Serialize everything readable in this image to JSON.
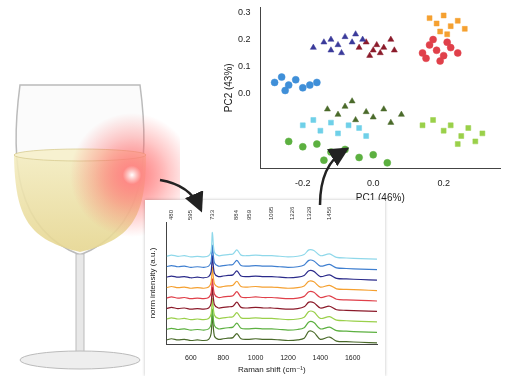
{
  "chart_data": [
    {
      "type": "line",
      "x_label": "Raman shift (cm⁻¹)",
      "y_label": "norm intensity (a.u.)",
      "x": [
        450,
        480,
        520,
        560,
        600,
        640,
        680,
        710,
        725,
        733,
        745,
        770,
        800,
        830,
        860,
        884,
        910,
        950,
        1000,
        1050,
        1100,
        1150,
        1200,
        1260,
        1300,
        1329,
        1360,
        1400,
        1456,
        1500,
        1560,
        1650,
        1750
      ],
      "series": [
        {
          "color": "#8fd8ea",
          "values": [
            7.55,
            7.65,
            7.55,
            7.6,
            7.5,
            7.55,
            7.5,
            7.6,
            8.0,
            9.6,
            7.9,
            7.6,
            7.65,
            7.7,
            7.75,
            8.1,
            7.65,
            7.6,
            7.65,
            7.6,
            7.6,
            7.55,
            7.5,
            7.55,
            7.7,
            8.1,
            8.05,
            7.6,
            7.75,
            7.45,
            7.4,
            7.35,
            7.3
          ]
        },
        {
          "color": "#3f7fd0",
          "values": [
            6.65,
            6.75,
            6.65,
            6.7,
            6.6,
            6.65,
            6.6,
            6.7,
            7.1,
            8.5,
            7.0,
            6.7,
            6.75,
            6.8,
            6.85,
            7.2,
            6.75,
            6.7,
            6.75,
            6.7,
            6.7,
            6.65,
            6.6,
            6.65,
            6.8,
            7.2,
            7.15,
            6.7,
            6.85,
            6.55,
            6.5,
            6.45,
            6.4
          ]
        },
        {
          "color": "#2a2a8a",
          "values": [
            5.75,
            5.85,
            5.75,
            5.8,
            5.7,
            5.75,
            5.7,
            5.8,
            6.2,
            7.6,
            6.1,
            5.8,
            5.85,
            5.9,
            5.95,
            6.3,
            5.85,
            5.8,
            5.85,
            5.8,
            5.8,
            5.75,
            5.7,
            5.75,
            5.9,
            6.3,
            6.25,
            5.8,
            5.95,
            5.65,
            5.6,
            5.55,
            5.5
          ]
        },
        {
          "color": "#f5a030",
          "values": [
            4.85,
            4.95,
            4.85,
            4.9,
            4.8,
            4.85,
            4.8,
            4.9,
            5.3,
            6.6,
            5.2,
            4.9,
            4.95,
            5.0,
            5.05,
            5.4,
            4.95,
            4.9,
            4.95,
            4.9,
            4.9,
            4.85,
            4.8,
            4.85,
            5.0,
            5.4,
            5.35,
            4.9,
            5.05,
            4.75,
            4.7,
            4.65,
            4.6
          ]
        },
        {
          "color": "#e0404a",
          "values": [
            3.95,
            4.05,
            3.95,
            4.0,
            3.9,
            3.95,
            3.9,
            4.0,
            4.4,
            5.6,
            4.3,
            4.0,
            4.05,
            4.1,
            4.15,
            4.5,
            4.05,
            4.0,
            4.05,
            4.0,
            4.0,
            3.95,
            3.9,
            3.95,
            4.1,
            4.5,
            4.45,
            4.0,
            4.15,
            3.85,
            3.8,
            3.75,
            3.7
          ]
        },
        {
          "color": "#8b1a2a",
          "values": [
            3.05,
            3.15,
            3.05,
            3.1,
            3.0,
            3.05,
            3.0,
            3.1,
            3.5,
            4.9,
            3.4,
            3.1,
            3.15,
            3.2,
            3.25,
            3.6,
            3.15,
            3.1,
            3.15,
            3.1,
            3.1,
            3.05,
            3.0,
            3.05,
            3.2,
            3.6,
            3.55,
            3.1,
            3.25,
            2.95,
            2.9,
            2.85,
            2.8
          ]
        },
        {
          "color": "#9ad04a",
          "values": [
            2.15,
            2.25,
            2.15,
            2.2,
            2.1,
            2.15,
            2.1,
            2.2,
            2.6,
            3.9,
            2.5,
            2.2,
            2.25,
            2.3,
            2.35,
            2.7,
            2.25,
            2.2,
            2.25,
            2.2,
            2.2,
            2.15,
            2.1,
            2.15,
            2.3,
            2.8,
            2.75,
            2.2,
            2.35,
            2.05,
            2.0,
            1.95,
            1.9
          ]
        },
        {
          "color": "#5cb040",
          "values": [
            1.25,
            1.35,
            1.25,
            1.3,
            1.2,
            1.25,
            1.2,
            1.3,
            1.7,
            3.0,
            1.6,
            1.3,
            1.35,
            1.4,
            1.45,
            1.8,
            1.35,
            1.3,
            1.35,
            1.3,
            1.3,
            1.25,
            1.2,
            1.25,
            1.4,
            1.9,
            1.85,
            1.3,
            1.45,
            1.15,
            1.1,
            1.05,
            1.0
          ]
        },
        {
          "color": "#4a6a2a",
          "values": [
            0.35,
            0.45,
            0.35,
            0.4,
            0.3,
            0.35,
            0.3,
            0.4,
            0.9,
            2.6,
            0.7,
            0.4,
            0.45,
            0.5,
            0.55,
            0.9,
            0.45,
            0.4,
            0.45,
            0.4,
            0.4,
            0.35,
            0.3,
            0.35,
            0.5,
            1.1,
            1.0,
            0.4,
            0.6,
            0.25,
            0.2,
            0.15,
            0.1
          ]
        }
      ],
      "xlim": [
        450,
        1750
      ],
      "xticks": [
        600,
        800,
        1000,
        1200,
        1400,
        1600
      ],
      "ylim": [
        0,
        10.5
      ],
      "tick_labels": "x",
      "grid": false,
      "annotations": [
        {
          "x": 480,
          "text": "480"
        },
        {
          "x": 595,
          "text": "595"
        },
        {
          "x": 733,
          "text": "733"
        },
        {
          "x": 884,
          "text": "884"
        },
        {
          "x": 959,
          "text": "959"
        },
        {
          "x": 1095,
          "text": "1095"
        },
        {
          "x": 1226,
          "text": "1226"
        },
        {
          "x": 1329,
          "text": "1329"
        },
        {
          "x": 1456,
          "text": "1456"
        }
      ]
    },
    {
      "type": "scatter",
      "x_label": "PC1 (46%)",
      "y_label": "PC2 (43%)",
      "series": [
        {
          "color": "#3a3a9a",
          "marker": "triangle",
          "values": [
            [
              -0.17,
              0.17
            ],
            [
              -0.14,
              0.19
            ],
            [
              -0.12,
              0.2
            ],
            [
              -0.1,
              0.18
            ],
            [
              -0.08,
              0.21
            ],
            [
              -0.06,
              0.19
            ],
            [
              -0.05,
              0.22
            ],
            [
              -0.03,
              0.2
            ],
            [
              -0.12,
              0.16
            ],
            [
              -0.09,
              0.15
            ]
          ]
        },
        {
          "color": "#8b1a2a",
          "marker": "triangle",
          "values": [
            [
              -0.04,
              0.17
            ],
            [
              -0.02,
              0.19
            ],
            [
              0.0,
              0.16
            ],
            [
              0.01,
              0.18
            ],
            [
              0.03,
              0.17
            ],
            [
              0.05,
              0.2
            ],
            [
              0.02,
              0.15
            ],
            [
              -0.01,
              0.14
            ],
            [
              0.06,
              0.16
            ]
          ]
        },
        {
          "color": "#e0404a",
          "marker": "circle",
          "values": [
            [
              0.14,
              0.15
            ],
            [
              0.16,
              0.18
            ],
            [
              0.18,
              0.16
            ],
            [
              0.2,
              0.14
            ],
            [
              0.22,
              0.17
            ],
            [
              0.19,
              0.12
            ],
            [
              0.24,
              0.15
            ],
            [
              0.17,
              0.2
            ],
            [
              0.21,
              0.19
            ],
            [
              0.15,
              0.13
            ]
          ]
        },
        {
          "color": "#f5a030",
          "marker": "square",
          "values": [
            [
              0.16,
              0.28
            ],
            [
              0.18,
              0.26
            ],
            [
              0.2,
              0.29
            ],
            [
              0.22,
              0.25
            ],
            [
              0.24,
              0.27
            ],
            [
              0.19,
              0.23
            ],
            [
              0.26,
              0.24
            ],
            [
              0.21,
              0.22
            ]
          ]
        },
        {
          "color": "#3f8fd8",
          "marker": "circle",
          "values": [
            [
              -0.28,
              0.04
            ],
            [
              -0.26,
              0.06
            ],
            [
              -0.24,
              0.03
            ],
            [
              -0.22,
              0.05
            ],
            [
              -0.2,
              0.02
            ],
            [
              -0.25,
              0.01
            ],
            [
              -0.18,
              0.03
            ],
            [
              -0.16,
              0.04
            ]
          ]
        },
        {
          "color": "#4a6a2a",
          "marker": "triangle",
          "values": [
            [
              -0.13,
              -0.06
            ],
            [
              -0.1,
              -0.08
            ],
            [
              -0.08,
              -0.05
            ],
            [
              -0.05,
              -0.1
            ],
            [
              -0.02,
              -0.07
            ],
            [
              0.0,
              -0.09
            ],
            [
              0.03,
              -0.06
            ],
            [
              0.05,
              -0.11
            ],
            [
              0.08,
              -0.08
            ],
            [
              -0.06,
              -0.03
            ]
          ]
        },
        {
          "color": "#6fd0e8",
          "marker": "square",
          "values": [
            [
              -0.2,
              -0.12
            ],
            [
              -0.17,
              -0.1
            ],
            [
              -0.15,
              -0.14
            ],
            [
              -0.12,
              -0.11
            ],
            [
              -0.1,
              -0.15
            ],
            [
              -0.07,
              -0.12
            ],
            [
              -0.04,
              -0.13
            ],
            [
              -0.02,
              -0.16
            ]
          ]
        },
        {
          "color": "#9ad04a",
          "marker": "square",
          "values": [
            [
              0.14,
              -0.12
            ],
            [
              0.17,
              -0.1
            ],
            [
              0.2,
              -0.14
            ],
            [
              0.22,
              -0.12
            ],
            [
              0.25,
              -0.16
            ],
            [
              0.27,
              -0.13
            ],
            [
              0.29,
              -0.18
            ],
            [
              0.31,
              -0.15
            ],
            [
              0.24,
              -0.19
            ]
          ]
        },
        {
          "color": "#5cb040",
          "marker": "circle",
          "values": [
            [
              -0.24,
              -0.18
            ],
            [
              -0.2,
              -0.2
            ],
            [
              -0.16,
              -0.19
            ],
            [
              -0.12,
              -0.22
            ],
            [
              -0.08,
              -0.21
            ],
            [
              -0.04,
              -0.24
            ],
            [
              0.0,
              -0.23
            ],
            [
              0.04,
              -0.26
            ],
            [
              -0.14,
              -0.25
            ]
          ]
        }
      ],
      "xlim": [
        -0.32,
        0.36
      ],
      "xticks": [
        -0.2,
        {
          "value": 0,
          "label": "0.0"
        },
        0.2
      ],
      "ylim": [
        -0.28,
        0.32
      ],
      "yticks": [
        {
          "value": 0,
          "label": "0.0"
        },
        0.1,
        0.2,
        0.3
      ],
      "grid": false
    }
  ]
}
